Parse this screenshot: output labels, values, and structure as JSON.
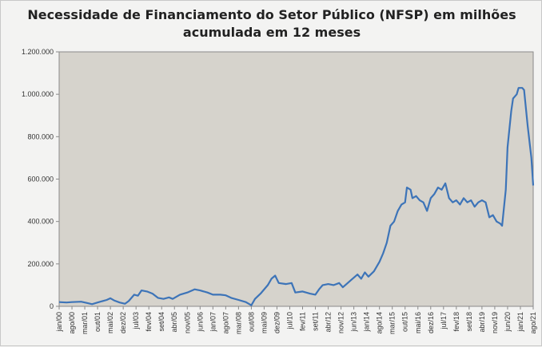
{
  "chart_data": {
    "type": "line",
    "title_lines": [
      "Necessidade de Financiamento do Setor Público (NFSP) em milhões",
      "acumulada em 12 meses"
    ],
    "xlabel": "",
    "ylabel": "",
    "ylim": [
      0,
      1200000
    ],
    "grid": false,
    "legend": "none",
    "colors": {
      "line": "#3d74b8",
      "plot_bg": "#d6d3cc",
      "frame": "#8a8a8a",
      "text": "#333333"
    },
    "y_ticks": [
      {
        "value": 0,
        "label": "0"
      },
      {
        "value": 200000,
        "label": "200.000"
      },
      {
        "value": 400000,
        "label": "400.000"
      },
      {
        "value": 600000,
        "label": "600.000"
      },
      {
        "value": 800000,
        "label": "800.000"
      },
      {
        "value": 1000000,
        "label": "1.000.000"
      },
      {
        "value": 1200000,
        "label": "1.200.000"
      }
    ],
    "x_ticks": [
      {
        "index": 0,
        "label": "jan/00"
      },
      {
        "index": 7,
        "label": "ago/00"
      },
      {
        "index": 14,
        "label": "mar/01"
      },
      {
        "index": 21,
        "label": "out/01"
      },
      {
        "index": 28,
        "label": "mai/02"
      },
      {
        "index": 35,
        "label": "dez/02"
      },
      {
        "index": 42,
        "label": "jul/03"
      },
      {
        "index": 49,
        "label": "fev/04"
      },
      {
        "index": 56,
        "label": "set/04"
      },
      {
        "index": 63,
        "label": "abr/05"
      },
      {
        "index": 70,
        "label": "nov/05"
      },
      {
        "index": 77,
        "label": "jun/06"
      },
      {
        "index": 84,
        "label": "jan/07"
      },
      {
        "index": 91,
        "label": "ago/07"
      },
      {
        "index": 98,
        "label": "mar/08"
      },
      {
        "index": 105,
        "label": "out/08"
      },
      {
        "index": 112,
        "label": "mai/09"
      },
      {
        "index": 119,
        "label": "dez/09"
      },
      {
        "index": 126,
        "label": "jul/10"
      },
      {
        "index": 133,
        "label": "fev/11"
      },
      {
        "index": 140,
        "label": "set/11"
      },
      {
        "index": 147,
        "label": "abr/12"
      },
      {
        "index": 154,
        "label": "nov/12"
      },
      {
        "index": 161,
        "label": "jun/13"
      },
      {
        "index": 168,
        "label": "jan/14"
      },
      {
        "index": 175,
        "label": "ago/14"
      },
      {
        "index": 182,
        "label": "mar/15"
      },
      {
        "index": 189,
        "label": "out/15"
      },
      {
        "index": 196,
        "label": "mai/16"
      },
      {
        "index": 203,
        "label": "dez/16"
      },
      {
        "index": 210,
        "label": "jul/17"
      },
      {
        "index": 217,
        "label": "fev/18"
      },
      {
        "index": 224,
        "label": "set/18"
      },
      {
        "index": 231,
        "label": "abr/19"
      },
      {
        "index": 238,
        "label": "nov/19"
      },
      {
        "index": 245,
        "label": "jun/20"
      },
      {
        "index": 252,
        "label": "jan/21"
      },
      {
        "index": 259,
        "label": "ago/21"
      }
    ],
    "series": [
      {
        "name": "NFSP acumulada em 12 meses (milhões)",
        "start": "jan/00",
        "end": "ago/21",
        "anchors": [
          [
            0,
            20000
          ],
          [
            4,
            18000
          ],
          [
            7,
            20000
          ],
          [
            12,
            22000
          ],
          [
            15,
            16000
          ],
          [
            18,
            10000
          ],
          [
            21,
            18000
          ],
          [
            26,
            30000
          ],
          [
            28,
            38000
          ],
          [
            30,
            28000
          ],
          [
            33,
            18000
          ],
          [
            36,
            12000
          ],
          [
            38,
            25000
          ],
          [
            41,
            55000
          ],
          [
            43,
            50000
          ],
          [
            45,
            75000
          ],
          [
            48,
            70000
          ],
          [
            51,
            60000
          ],
          [
            54,
            40000
          ],
          [
            57,
            35000
          ],
          [
            60,
            42000
          ],
          [
            62,
            35000
          ],
          [
            66,
            55000
          ],
          [
            70,
            65000
          ],
          [
            74,
            80000
          ],
          [
            77,
            75000
          ],
          [
            81,
            65000
          ],
          [
            84,
            55000
          ],
          [
            88,
            55000
          ],
          [
            91,
            52000
          ],
          [
            94,
            40000
          ],
          [
            98,
            30000
          ],
          [
            102,
            20000
          ],
          [
            105,
            5000
          ],
          [
            107,
            35000
          ],
          [
            110,
            60000
          ],
          [
            114,
            100000
          ],
          [
            116,
            130000
          ],
          [
            118,
            145000
          ],
          [
            120,
            110000
          ],
          [
            124,
            105000
          ],
          [
            127,
            110000
          ],
          [
            129,
            65000
          ],
          [
            133,
            70000
          ],
          [
            137,
            60000
          ],
          [
            140,
            55000
          ],
          [
            142,
            80000
          ],
          [
            144,
            100000
          ],
          [
            147,
            105000
          ],
          [
            150,
            100000
          ],
          [
            153,
            110000
          ],
          [
            155,
            90000
          ],
          [
            157,
            105000
          ],
          [
            159,
            120000
          ],
          [
            161,
            135000
          ],
          [
            163,
            150000
          ],
          [
            165,
            130000
          ],
          [
            167,
            160000
          ],
          [
            169,
            140000
          ],
          [
            172,
            165000
          ],
          [
            175,
            210000
          ],
          [
            177,
            250000
          ],
          [
            179,
            300000
          ],
          [
            181,
            380000
          ],
          [
            183,
            400000
          ],
          [
            185,
            450000
          ],
          [
            187,
            480000
          ],
          [
            189,
            490000
          ],
          [
            190,
            560000
          ],
          [
            192,
            550000
          ],
          [
            193,
            510000
          ],
          [
            195,
            520000
          ],
          [
            197,
            500000
          ],
          [
            199,
            490000
          ],
          [
            201,
            450000
          ],
          [
            203,
            510000
          ],
          [
            205,
            530000
          ],
          [
            207,
            560000
          ],
          [
            209,
            550000
          ],
          [
            211,
            580000
          ],
          [
            213,
            510000
          ],
          [
            215,
            490000
          ],
          [
            217,
            500000
          ],
          [
            219,
            480000
          ],
          [
            221,
            510000
          ],
          [
            223,
            490000
          ],
          [
            225,
            500000
          ],
          [
            227,
            470000
          ],
          [
            229,
            490000
          ],
          [
            231,
            500000
          ],
          [
            233,
            490000
          ],
          [
            235,
            420000
          ],
          [
            237,
            430000
          ],
          [
            239,
            400000
          ],
          [
            241,
            390000
          ],
          [
            242,
            380000
          ],
          [
            244,
            550000
          ],
          [
            245,
            750000
          ],
          [
            247,
            920000
          ],
          [
            248,
            980000
          ],
          [
            250,
            1000000
          ],
          [
            251,
            1030000
          ],
          [
            253,
            1030000
          ],
          [
            254,
            1020000
          ],
          [
            256,
            850000
          ],
          [
            258,
            700000
          ],
          [
            259,
            570000
          ]
        ]
      }
    ]
  }
}
